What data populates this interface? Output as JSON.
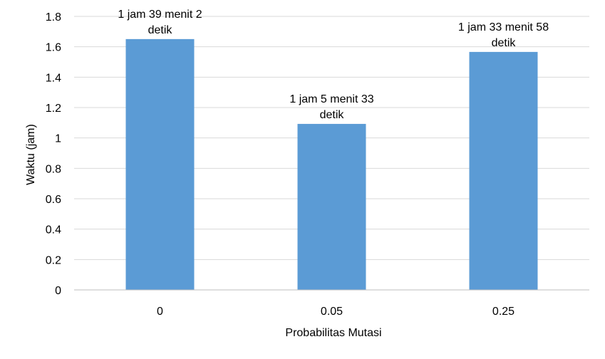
{
  "chart_data": {
    "type": "bar",
    "title": "",
    "xlabel": "Probabilitas Mutasi",
    "ylabel": "Waktu (jam)",
    "categories": [
      "0",
      "0.05",
      "0.25"
    ],
    "values": [
      1.6506,
      1.0925,
      1.5661
    ],
    "data_labels": [
      [
        "1 jam 39 menit 2",
        "detik"
      ],
      [
        "1 jam 5 menit 33",
        "detik"
      ],
      [
        "1 jam 33 menit 58",
        "detik"
      ]
    ],
    "ylim": [
      0,
      1.8
    ],
    "yticks": [
      0,
      0.2,
      0.4,
      0.6,
      0.8,
      1,
      1.2,
      1.4,
      1.6,
      1.8
    ],
    "ytick_labels": [
      "0",
      "0.2",
      "0.4",
      "0.6",
      "0.8",
      "1",
      "1.2",
      "1.4",
      "1.6",
      "1.8"
    ],
    "grid": true,
    "legend": "none",
    "colors": {
      "bar": "#5b9bd5",
      "grid": "#d9d9d9",
      "axis": "#bfbfbf",
      "text": "#000000"
    }
  }
}
